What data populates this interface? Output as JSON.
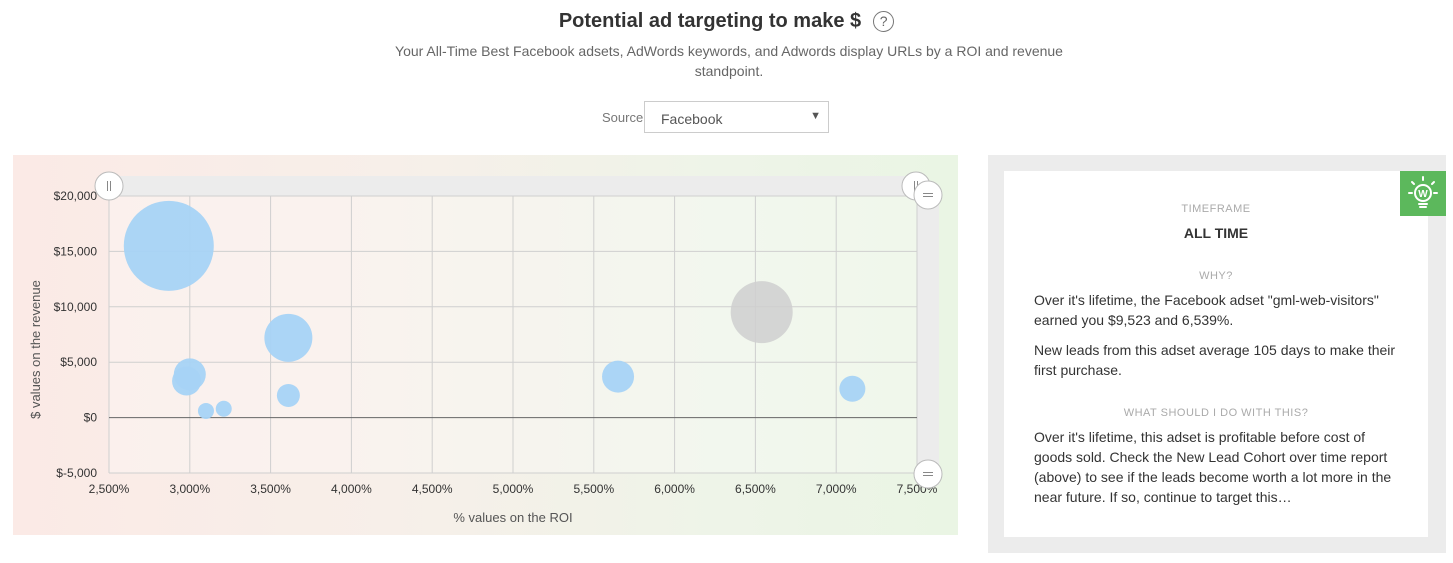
{
  "header": {
    "title": "Potential ad targeting to make $",
    "help_icon": "question-circle-icon",
    "subtitle": "Your All-Time Best Facebook adsets, AdWords keywords, and Adwords display URLs by a ROI and revenue standpoint."
  },
  "source": {
    "label": "Source",
    "value": "Facebook"
  },
  "chart_data": {
    "type": "scatter",
    "xlabel": "% values on the ROI",
    "ylabel": "$ values on the revenue",
    "xlim": [
      2500,
      7500
    ],
    "ylim": [
      -5000,
      20000
    ],
    "x_ticks": [
      "2,500%",
      "3,000%",
      "3,500%",
      "4,000%",
      "4,500%",
      "5,000%",
      "5,500%",
      "6,000%",
      "6,500%",
      "7,000%",
      "7,500%"
    ],
    "y_ticks": [
      "$20,000",
      "$15,000",
      "$10,000",
      "$5,000",
      "$0",
      "$-5,000"
    ],
    "grid": true,
    "points": [
      {
        "x": 2870,
        "y": 15500,
        "size": 9.0,
        "highlighted": false
      },
      {
        "x": 3610,
        "y": 7200,
        "size": 4.8,
        "highlighted": false
      },
      {
        "x": 3000,
        "y": 3900,
        "size": 3.2,
        "highlighted": false
      },
      {
        "x": 2980,
        "y": 3300,
        "size": 2.9,
        "highlighted": false
      },
      {
        "x": 3610,
        "y": 2000,
        "size": 2.3,
        "highlighted": false
      },
      {
        "x": 3100,
        "y": 600,
        "size": 1.6,
        "highlighted": false
      },
      {
        "x": 3210,
        "y": 800,
        "size": 1.6,
        "highlighted": false
      },
      {
        "x": 5650,
        "y": 3700,
        "size": 3.2,
        "highlighted": false
      },
      {
        "x": 7100,
        "y": 2600,
        "size": 2.6,
        "highlighted": false
      },
      {
        "x": 6539,
        "y": 9523,
        "size": 6.2,
        "highlighted": true
      }
    ],
    "colors": {
      "bubble": "#a7d3f5",
      "highlight": "#cfcfcf"
    }
  },
  "info": {
    "bulb_icon": "lightbulb-icon",
    "timeframe_label": "TIMEFRAME",
    "timeframe_value": "ALL TIME",
    "why_label": "WHY?",
    "why_p1": "Over it's lifetime, the Facebook adset \"gml-web-visitors\" earned you $9,523 and 6,539%.",
    "why_p2": "New leads from this adset average 105 days to make their first purchase.",
    "todo_label": "WHAT SHOULD I DO WITH THIS?",
    "todo_p1": "Over it's lifetime, this adset is profitable before cost of goods sold. Check the New Lead Cohort over time report (above) to see if the leads become worth a lot more in the near future. If so, continue to target this…"
  }
}
